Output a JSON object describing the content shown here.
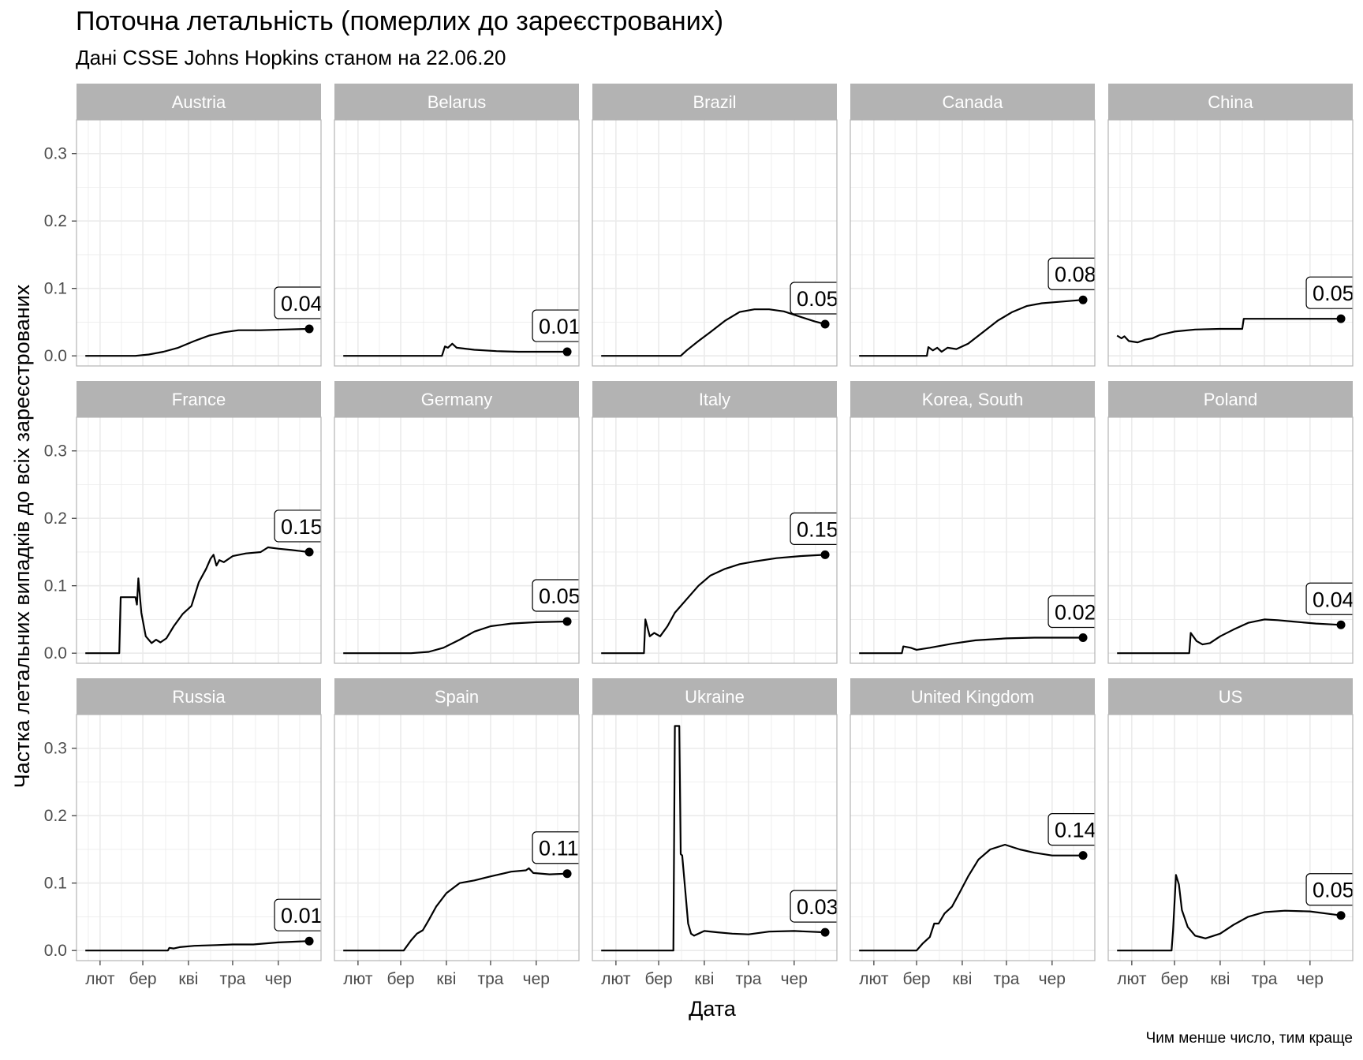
{
  "chart_data": {
    "type": "line",
    "title": "Поточна летальність (померлих до зареєстрованих)",
    "subtitle": "Дані CSSE Johns Hopkins станом на 22.06.20",
    "caption": "Чим менше число, тим краще",
    "xlabel": "Дата",
    "ylabel": "Частка летальних випадків до всіх зареєстрованих",
    "x_ticks": [
      "лют",
      "бер",
      "кві",
      "тра",
      "чер"
    ],
    "x_tick_dates": [
      "2020-02-01",
      "2020-03-01",
      "2020-04-01",
      "2020-05-01",
      "2020-06-01"
    ],
    "xlim": [
      "2020-01-16",
      "2020-06-30"
    ],
    "y_ticks": [
      "0.0",
      "0.1",
      "0.2",
      "0.3"
    ],
    "y_tick_values": [
      0,
      0.1,
      0.2,
      0.3
    ],
    "ylim": [
      -0.015,
      0.35
    ],
    "grid": true,
    "legend": "none",
    "layout": "facet 3x5, shared axes",
    "colors": {
      "line": "#000000",
      "strip": "#b3b3b3",
      "strip_text": "#ffffff",
      "grid": "#ebebeb",
      "border": "#b3b3b3"
    },
    "series": [
      {
        "name": "Austria",
        "end_label": "0.04",
        "points": [
          [
            "2020-01-22",
            0
          ],
          [
            "2020-02-25",
            0
          ],
          [
            "2020-03-05",
            0.002
          ],
          [
            "2020-03-15",
            0.006
          ],
          [
            "2020-03-25",
            0.012
          ],
          [
            "2020-04-05",
            0.022
          ],
          [
            "2020-04-15",
            0.03
          ],
          [
            "2020-04-25",
            0.035
          ],
          [
            "2020-05-05",
            0.038
          ],
          [
            "2020-05-20",
            0.038
          ],
          [
            "2020-06-05",
            0.039
          ],
          [
            "2020-06-22",
            0.04
          ]
        ]
      },
      {
        "name": "Belarus",
        "end_label": "0.01",
        "points": [
          [
            "2020-01-22",
            0
          ],
          [
            "2020-03-29",
            0
          ],
          [
            "2020-03-31",
            0.014
          ],
          [
            "2020-04-02",
            0.012
          ],
          [
            "2020-04-05",
            0.018
          ],
          [
            "2020-04-08",
            0.012
          ],
          [
            "2020-04-20",
            0.009
          ],
          [
            "2020-05-05",
            0.007
          ],
          [
            "2020-05-20",
            0.006
          ],
          [
            "2020-06-05",
            0.006
          ],
          [
            "2020-06-22",
            0.006
          ]
        ]
      },
      {
        "name": "Brazil",
        "end_label": "0.05",
        "points": [
          [
            "2020-01-22",
            0
          ],
          [
            "2020-03-16",
            0
          ],
          [
            "2020-03-20",
            0.008
          ],
          [
            "2020-03-28",
            0.022
          ],
          [
            "2020-04-05",
            0.035
          ],
          [
            "2020-04-15",
            0.052
          ],
          [
            "2020-04-25",
            0.065
          ],
          [
            "2020-05-05",
            0.069
          ],
          [
            "2020-05-15",
            0.069
          ],
          [
            "2020-05-25",
            0.066
          ],
          [
            "2020-06-05",
            0.058
          ],
          [
            "2020-06-15",
            0.051
          ],
          [
            "2020-06-22",
            0.047
          ]
        ]
      },
      {
        "name": "Canada",
        "end_label": "0.08",
        "points": [
          [
            "2020-01-22",
            0
          ],
          [
            "2020-03-08",
            0
          ],
          [
            "2020-03-09",
            0.013
          ],
          [
            "2020-03-12",
            0.008
          ],
          [
            "2020-03-15",
            0.012
          ],
          [
            "2020-03-18",
            0.006
          ],
          [
            "2020-03-22",
            0.012
          ],
          [
            "2020-03-28",
            0.01
          ],
          [
            "2020-04-05",
            0.018
          ],
          [
            "2020-04-15",
            0.035
          ],
          [
            "2020-04-25",
            0.052
          ],
          [
            "2020-05-05",
            0.065
          ],
          [
            "2020-05-15",
            0.074
          ],
          [
            "2020-05-25",
            0.078
          ],
          [
            "2020-06-05",
            0.08
          ],
          [
            "2020-06-22",
            0.083
          ]
        ]
      },
      {
        "name": "China",
        "end_label": "0.05",
        "points": [
          [
            "2020-01-22",
            0.03
          ],
          [
            "2020-01-25",
            0.026
          ],
          [
            "2020-01-27",
            0.029
          ],
          [
            "2020-01-30",
            0.022
          ],
          [
            "2020-02-05",
            0.02
          ],
          [
            "2020-02-10",
            0.024
          ],
          [
            "2020-02-15",
            0.026
          ],
          [
            "2020-02-20",
            0.031
          ],
          [
            "2020-03-01",
            0.036
          ],
          [
            "2020-03-15",
            0.039
          ],
          [
            "2020-04-01",
            0.04
          ],
          [
            "2020-04-16",
            0.04
          ],
          [
            "2020-04-17",
            0.055
          ],
          [
            "2020-05-10",
            0.055
          ],
          [
            "2020-06-22",
            0.055
          ]
        ]
      },
      {
        "name": "France",
        "end_label": "0.15",
        "points": [
          [
            "2020-01-22",
            0
          ],
          [
            "2020-02-14",
            0
          ],
          [
            "2020-02-15",
            0.083
          ],
          [
            "2020-02-25",
            0.083
          ],
          [
            "2020-02-26",
            0.072
          ],
          [
            "2020-02-27",
            0.111
          ],
          [
            "2020-02-29",
            0.06
          ],
          [
            "2020-03-03",
            0.025
          ],
          [
            "2020-03-07",
            0.015
          ],
          [
            "2020-03-10",
            0.02
          ],
          [
            "2020-03-13",
            0.016
          ],
          [
            "2020-03-17",
            0.022
          ],
          [
            "2020-03-22",
            0.04
          ],
          [
            "2020-03-28",
            0.058
          ],
          [
            "2020-04-03",
            0.07
          ],
          [
            "2020-04-08",
            0.105
          ],
          [
            "2020-04-13",
            0.125
          ],
          [
            "2020-04-16",
            0.14
          ],
          [
            "2020-04-18",
            0.146
          ],
          [
            "2020-04-20",
            0.13
          ],
          [
            "2020-04-22",
            0.138
          ],
          [
            "2020-04-25",
            0.135
          ],
          [
            "2020-05-01",
            0.144
          ],
          [
            "2020-05-10",
            0.148
          ],
          [
            "2020-05-20",
            0.15
          ],
          [
            "2020-05-25",
            0.157
          ],
          [
            "2020-06-01",
            0.155
          ],
          [
            "2020-06-10",
            0.153
          ],
          [
            "2020-06-22",
            0.15
          ]
        ]
      },
      {
        "name": "Germany",
        "end_label": "0.05",
        "points": [
          [
            "2020-01-22",
            0
          ],
          [
            "2020-03-08",
            0
          ],
          [
            "2020-03-20",
            0.002
          ],
          [
            "2020-03-30",
            0.008
          ],
          [
            "2020-04-10",
            0.02
          ],
          [
            "2020-04-20",
            0.032
          ],
          [
            "2020-05-01",
            0.04
          ],
          [
            "2020-05-15",
            0.044
          ],
          [
            "2020-06-01",
            0.046
          ],
          [
            "2020-06-22",
            0.047
          ]
        ]
      },
      {
        "name": "Italy",
        "end_label": "0.15",
        "points": [
          [
            "2020-01-22",
            0
          ],
          [
            "2020-02-20",
            0
          ],
          [
            "2020-02-21",
            0.05
          ],
          [
            "2020-02-24",
            0.025
          ],
          [
            "2020-02-27",
            0.03
          ],
          [
            "2020-03-02",
            0.025
          ],
          [
            "2020-03-07",
            0.04
          ],
          [
            "2020-03-12",
            0.06
          ],
          [
            "2020-03-20",
            0.08
          ],
          [
            "2020-03-28",
            0.1
          ],
          [
            "2020-04-05",
            0.115
          ],
          [
            "2020-04-15",
            0.125
          ],
          [
            "2020-04-25",
            0.132
          ],
          [
            "2020-05-05",
            0.136
          ],
          [
            "2020-05-20",
            0.141
          ],
          [
            "2020-06-05",
            0.144
          ],
          [
            "2020-06-22",
            0.146
          ]
        ]
      },
      {
        "name": "Korea, South",
        "end_label": "0.02",
        "points": [
          [
            "2020-01-22",
            0
          ],
          [
            "2020-02-20",
            0
          ],
          [
            "2020-02-21",
            0.01
          ],
          [
            "2020-02-26",
            0.008
          ],
          [
            "2020-03-01",
            0.005
          ],
          [
            "2020-03-10",
            0.008
          ],
          [
            "2020-03-25",
            0.014
          ],
          [
            "2020-04-10",
            0.019
          ],
          [
            "2020-05-01",
            0.022
          ],
          [
            "2020-05-20",
            0.023
          ],
          [
            "2020-06-22",
            0.023
          ]
        ]
      },
      {
        "name": "Poland",
        "end_label": "0.04",
        "points": [
          [
            "2020-01-22",
            0
          ],
          [
            "2020-03-11",
            0
          ],
          [
            "2020-03-12",
            0.03
          ],
          [
            "2020-03-16",
            0.018
          ],
          [
            "2020-03-20",
            0.013
          ],
          [
            "2020-03-25",
            0.015
          ],
          [
            "2020-04-01",
            0.025
          ],
          [
            "2020-04-10",
            0.035
          ],
          [
            "2020-04-20",
            0.045
          ],
          [
            "2020-05-01",
            0.05
          ],
          [
            "2020-05-10",
            0.049
          ],
          [
            "2020-05-20",
            0.047
          ],
          [
            "2020-06-05",
            0.044
          ],
          [
            "2020-06-22",
            0.042
          ]
        ]
      },
      {
        "name": "Russia",
        "end_label": "0.01",
        "points": [
          [
            "2020-01-22",
            0
          ],
          [
            "2020-03-18",
            0
          ],
          [
            "2020-03-19",
            0.004
          ],
          [
            "2020-03-22",
            0.003
          ],
          [
            "2020-03-26",
            0.005
          ],
          [
            "2020-04-05",
            0.007
          ],
          [
            "2020-04-20",
            0.008
          ],
          [
            "2020-05-01",
            0.009
          ],
          [
            "2020-05-15",
            0.009
          ],
          [
            "2020-06-01",
            0.012
          ],
          [
            "2020-06-22",
            0.014
          ]
        ]
      },
      {
        "name": "Spain",
        "end_label": "0.11",
        "points": [
          [
            "2020-01-22",
            0
          ],
          [
            "2020-03-03",
            0
          ],
          [
            "2020-03-08",
            0.015
          ],
          [
            "2020-03-12",
            0.025
          ],
          [
            "2020-03-16",
            0.03
          ],
          [
            "2020-03-20",
            0.045
          ],
          [
            "2020-03-25",
            0.065
          ],
          [
            "2020-04-01",
            0.085
          ],
          [
            "2020-04-10",
            0.1
          ],
          [
            "2020-04-20",
            0.104
          ],
          [
            "2020-05-01",
            0.11
          ],
          [
            "2020-05-15",
            0.117
          ],
          [
            "2020-05-25",
            0.119
          ],
          [
            "2020-05-27",
            0.122
          ],
          [
            "2020-05-30",
            0.115
          ],
          [
            "2020-06-10",
            0.113
          ],
          [
            "2020-06-22",
            0.114
          ]
        ]
      },
      {
        "name": "Ukraine",
        "end_label": "0.03",
        "points": [
          [
            "2020-01-22",
            0
          ],
          [
            "2020-03-11",
            0
          ],
          [
            "2020-03-12",
            0.333
          ],
          [
            "2020-03-15",
            0.333
          ],
          [
            "2020-03-16",
            0.143
          ],
          [
            "2020-03-17",
            0.141
          ],
          [
            "2020-03-19",
            0.09
          ],
          [
            "2020-03-21",
            0.04
          ],
          [
            "2020-03-23",
            0.025
          ],
          [
            "2020-03-25",
            0.022
          ],
          [
            "2020-04-01",
            0.029
          ],
          [
            "2020-04-10",
            0.027
          ],
          [
            "2020-04-20",
            0.025
          ],
          [
            "2020-05-01",
            0.024
          ],
          [
            "2020-05-15",
            0.028
          ],
          [
            "2020-06-01",
            0.029
          ],
          [
            "2020-06-22",
            0.027
          ]
        ]
      },
      {
        "name": "United Kingdom",
        "end_label": "0.14",
        "points": [
          [
            "2020-01-22",
            0
          ],
          [
            "2020-03-01",
            0
          ],
          [
            "2020-03-05",
            0.01
          ],
          [
            "2020-03-10",
            0.02
          ],
          [
            "2020-03-13",
            0.04
          ],
          [
            "2020-03-16",
            0.04
          ],
          [
            "2020-03-20",
            0.055
          ],
          [
            "2020-03-25",
            0.065
          ],
          [
            "2020-03-30",
            0.085
          ],
          [
            "2020-04-05",
            0.11
          ],
          [
            "2020-04-12",
            0.135
          ],
          [
            "2020-04-20",
            0.15
          ],
          [
            "2020-04-30",
            0.157
          ],
          [
            "2020-05-10",
            0.15
          ],
          [
            "2020-05-20",
            0.145
          ],
          [
            "2020-06-01",
            0.141
          ],
          [
            "2020-06-22",
            0.141
          ]
        ]
      },
      {
        "name": "US",
        "end_label": "0.05",
        "points": [
          [
            "2020-01-22",
            0
          ],
          [
            "2020-02-28",
            0
          ],
          [
            "2020-02-29",
            0.03
          ],
          [
            "2020-03-02",
            0.112
          ],
          [
            "2020-03-04",
            0.098
          ],
          [
            "2020-03-06",
            0.06
          ],
          [
            "2020-03-10",
            0.035
          ],
          [
            "2020-03-15",
            0.022
          ],
          [
            "2020-03-22",
            0.018
          ],
          [
            "2020-04-01",
            0.025
          ],
          [
            "2020-04-10",
            0.038
          ],
          [
            "2020-04-20",
            0.05
          ],
          [
            "2020-05-01",
            0.057
          ],
          [
            "2020-05-15",
            0.059
          ],
          [
            "2020-06-01",
            0.058
          ],
          [
            "2020-06-22",
            0.052
          ]
        ]
      }
    ]
  }
}
